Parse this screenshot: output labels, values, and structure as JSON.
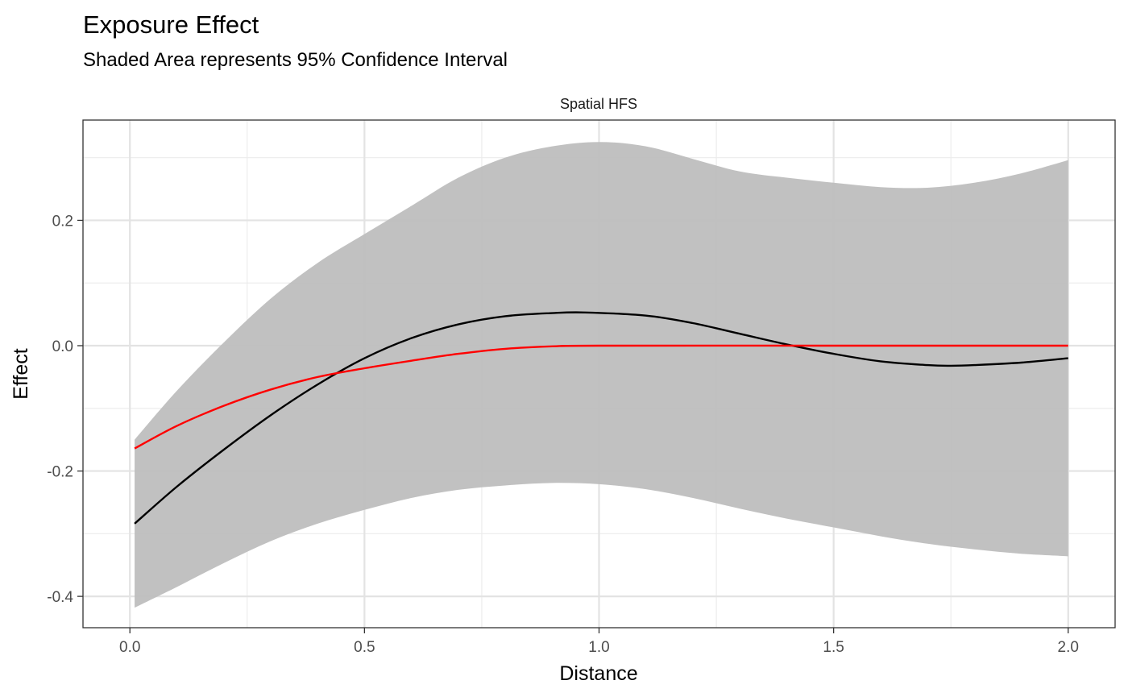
{
  "chart_data": {
    "type": "line",
    "title": "Exposure Effect",
    "subtitle": "Shaded Area represents 95% Confidence Interval",
    "facet_label": "Spatial HFS",
    "xlabel": "Distance",
    "ylabel": "Effect",
    "xlim": [
      -0.1,
      2.1
    ],
    "ylim": [
      -0.45,
      0.36
    ],
    "x_ticks": [
      0.0,
      0.5,
      1.0,
      1.5,
      2.0
    ],
    "x_tick_labels": [
      "0.0",
      "0.5",
      "1.0",
      "1.5",
      "2.0"
    ],
    "y_ticks": [
      -0.4,
      -0.2,
      0.0,
      0.2
    ],
    "y_tick_labels": [
      "-0.4",
      "-0.2",
      "0.0",
      "0.2"
    ],
    "x_minor_ticks": [
      0.25,
      0.75,
      1.25,
      1.75
    ],
    "y_minor_ticks": [
      -0.3,
      -0.1,
      0.1,
      0.3
    ],
    "grid": true,
    "ribbon": {
      "x": [
        0.01,
        0.1,
        0.2,
        0.3,
        0.4,
        0.5,
        0.6,
        0.7,
        0.8,
        0.9,
        1.0,
        1.1,
        1.2,
        1.3,
        1.4,
        1.5,
        1.6,
        1.7,
        1.8,
        1.9,
        2.0
      ],
      "lower": [
        -0.418,
        -0.385,
        -0.347,
        -0.312,
        -0.284,
        -0.262,
        -0.243,
        -0.23,
        -0.223,
        -0.219,
        -0.221,
        -0.229,
        -0.243,
        -0.26,
        -0.276,
        -0.29,
        -0.304,
        -0.316,
        -0.325,
        -0.332,
        -0.336
      ],
      "upper": [
        -0.15,
        -0.072,
        0.005,
        0.075,
        0.132,
        0.178,
        0.223,
        0.268,
        0.3,
        0.318,
        0.325,
        0.318,
        0.298,
        0.278,
        0.268,
        0.26,
        0.253,
        0.252,
        0.26,
        0.275,
        0.296
      ],
      "color": "#bebebe"
    },
    "series": [
      {
        "color": "#000000",
        "x": [
          0.01,
          0.1,
          0.2,
          0.3,
          0.4,
          0.5,
          0.6,
          0.7,
          0.8,
          0.9,
          0.97,
          1.1,
          1.2,
          1.3,
          1.4,
          1.5,
          1.6,
          1.7,
          1.75,
          1.8,
          1.9,
          2.0
        ],
        "y": [
          -0.284,
          -0.225,
          -0.166,
          -0.111,
          -0.062,
          -0.02,
          0.012,
          0.034,
          0.047,
          0.052,
          0.053,
          0.048,
          0.036,
          0.019,
          0.002,
          -0.013,
          -0.025,
          -0.031,
          -0.032,
          -0.031,
          -0.027,
          -0.02
        ]
      },
      {
        "color": "#ff0000",
        "x": [
          0.01,
          0.1,
          0.2,
          0.3,
          0.4,
          0.5,
          0.6,
          0.7,
          0.8,
          0.9,
          1.0,
          1.5,
          2.0
        ],
        "y": [
          -0.164,
          -0.128,
          -0.096,
          -0.07,
          -0.05,
          -0.036,
          -0.024,
          -0.013,
          -0.005,
          -0.001,
          0.0,
          0.0,
          0.0
        ]
      }
    ]
  }
}
